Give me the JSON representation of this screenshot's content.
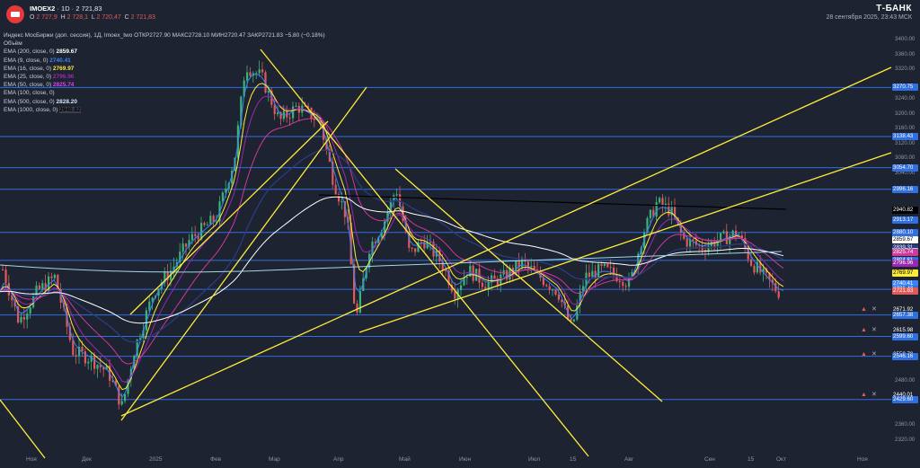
{
  "header": {
    "symbol": "IMOEX2",
    "interval": "1D",
    "last_price": "2 721,83",
    "ohlc": {
      "o_label": "O",
      "o": "2 727,9",
      "h_label": "H",
      "h": "2 728,1",
      "l_label": "L",
      "l": "2 720,47",
      "c_label": "C",
      "c": "2 721,83"
    },
    "brand": "Т‑БАНК",
    "datetime": "28 сентября 2025, 23:43 МСК"
  },
  "legend": {
    "title_line": "Индекс МосБиржи (доп. сессия), 1Д, Imoex_two  ОТКР2727.90  МАКС2728.10  МИН2720.47  ЗАКР2721.83  −5.80 (−0.18%)",
    "volume_label": "Объём",
    "rows": [
      {
        "label": "EMA (200, close, 0)",
        "value": "2859.67",
        "color": "#ffffff"
      },
      {
        "label": "EMA (9, close, 0)",
        "value": "2740.41",
        "color": "#3b82f6"
      },
      {
        "label": "EMA (16, close, 0)",
        "value": "2769.97",
        "color": "#ffeb3b"
      },
      {
        "label": "EMA (25, close, 0)",
        "value": "2796.96",
        "color": "#9c27b0"
      },
      {
        "label": "EMA (50, close, 0)",
        "value": "2825.74",
        "color": "#e040fb"
      },
      {
        "label": "EMA (100, close, 0)",
        "value": "",
        "color": "#2b3a7a"
      },
      {
        "label": "EMA (500, close, 0)",
        "value": "2828.20",
        "color": "#d0e8f0"
      },
      {
        "label": "EMA (1000, close, 0)",
        "value": "2940.82",
        "color": "#000000"
      }
    ]
  },
  "price_axis": {
    "ticks": [
      "3400.00",
      "3360.00",
      "3320.00",
      "3240.00",
      "3200.00",
      "3160.00",
      "3120.00",
      "3080.00",
      "3040.00",
      "2480.00",
      "2440.00",
      "2360.00",
      "2320.00"
    ],
    "labels": [
      {
        "text": "3270.75",
        "price": 3270.75,
        "color": "#2f6fe0"
      },
      {
        "text": "3138.43",
        "price": 3138.43,
        "color": "#2f6fe0"
      },
      {
        "text": "3054.70",
        "price": 3054.7,
        "color": "#2f6fe0"
      },
      {
        "text": "2996.16",
        "price": 2996.16,
        "color": "#2f6fe0"
      },
      {
        "text": "2940.82",
        "price": 2940.82,
        "color": "#000000"
      },
      {
        "text": "2913.17",
        "price": 2913.17,
        "color": "#2f6fe0"
      },
      {
        "text": "2880.10",
        "price": 2880.1,
        "color": "#2f6fe0"
      },
      {
        "text": "2859.67",
        "price": 2859.67,
        "color": "#ffffff",
        "fg": "#000000"
      },
      {
        "text": "2839.31",
        "price": 2839.31,
        "color": "#2b3a7a"
      },
      {
        "text": "2828.20",
        "price": 2828.2,
        "color": "#9fd8e6",
        "fg": "#000000"
      },
      {
        "text": "2825.74",
        "price": 2825.74,
        "color": "#d0389a"
      },
      {
        "text": "2804.61",
        "price": 2804.61,
        "color": "#2f6fe0"
      },
      {
        "text": "2796.96",
        "price": 2796.96,
        "color": "#9c27b0"
      },
      {
        "text": "2769.97",
        "price": 2769.97,
        "color": "#ffeb3b",
        "fg": "#000000"
      },
      {
        "text": "2740.41",
        "price": 2740.41,
        "color": "#3b82f6"
      },
      {
        "text": "2726.42",
        "price": 2726.42,
        "color": "#2f6fe0"
      },
      {
        "text": "2721.83",
        "price": 2721.83,
        "color": "#e05a5a"
      },
      {
        "text": "2671.92",
        "price": 2671.92,
        "color": "#1d2330"
      },
      {
        "text": "2657.38",
        "price": 2657.38,
        "color": "#2f6fe0"
      },
      {
        "text": "2615.98",
        "price": 2615.98,
        "color": "#1d2330"
      },
      {
        "text": "2599.60",
        "price": 2599.6,
        "color": "#2f6fe0"
      },
      {
        "text": "2550.70",
        "price": 2550.7,
        "color": "#1d2330"
      },
      {
        "text": "2546.16",
        "price": 2546.16,
        "color": "#2f6fe0"
      },
      {
        "text": "2440.01",
        "price": 2440.01,
        "color": "#1d2330"
      },
      {
        "text": "2429.60",
        "price": 2429.6,
        "color": "#2f6fe0"
      }
    ]
  },
  "x_axis": [
    "Ноя",
    "Дек",
    "2025",
    "Фев",
    "Мар",
    "Апр",
    "Май",
    "Июн",
    "Июл",
    "15",
    "Авг",
    "Сен",
    "15",
    "Окт",
    "Ноя"
  ],
  "alerts": [
    {
      "label": "2671.92"
    },
    {
      "label": "2615.98"
    },
    {
      "label": "2550.70"
    },
    {
      "label": "2440.01"
    }
  ],
  "colors": {
    "background": "#1d2330",
    "up": "#3ab37a",
    "down": "#e05a5a",
    "hline": "#2f6fe0",
    "trend": "#ffeb3b"
  }
}
